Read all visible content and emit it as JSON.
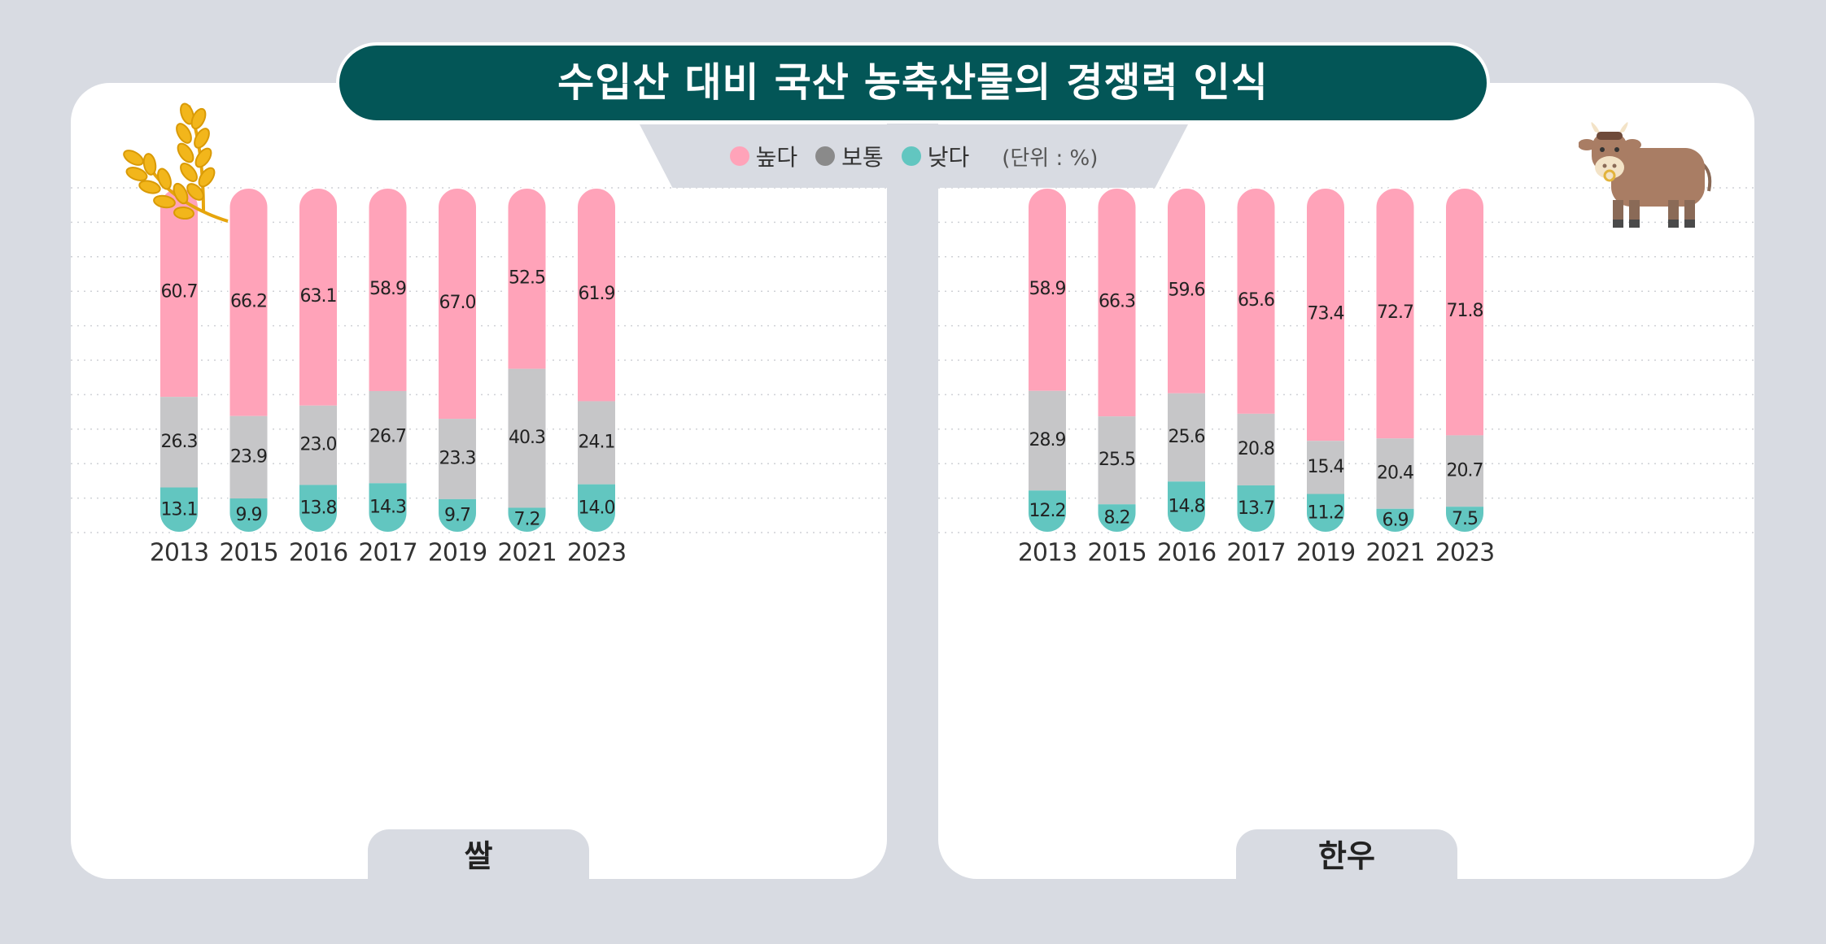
{
  "title": "수입산 대비 국산 농축산물의 경쟁력 인식",
  "legend": {
    "items": [
      {
        "label": "높다",
        "color": "#ffa3b9"
      },
      {
        "label": "보통",
        "color": "#8a8a8a"
      },
      {
        "label": "낮다",
        "color": "#62c6c0"
      }
    ],
    "unit": "(단위 : %)"
  },
  "colors": {
    "high": "#ffa3b9",
    "mid": "#c6c6c8",
    "low": "#62c6c0",
    "title_bg": "#035657"
  },
  "icons": {
    "left": "wheat-icon",
    "right": "cow-icon"
  },
  "chart_data": [
    {
      "type": "bar",
      "stacked": true,
      "title": "쌀",
      "categories": [
        "2013",
        "2015",
        "2016",
        "2017",
        "2019",
        "2021",
        "2023"
      ],
      "series": [
        {
          "name": "낮다",
          "values": [
            13.1,
            9.9,
            13.8,
            14.3,
            9.7,
            7.2,
            14.0
          ]
        },
        {
          "name": "보통",
          "values": [
            26.3,
            23.9,
            23.0,
            26.7,
            23.3,
            40.3,
            24.1
          ]
        },
        {
          "name": "높다",
          "values": [
            60.7,
            66.2,
            63.1,
            58.9,
            67.0,
            52.5,
            61.9
          ]
        }
      ],
      "value_labels": {
        "low": [
          "13.1",
          "9.9",
          "13.8",
          "14.3",
          "9.7",
          "7.2",
          "14.0"
        ],
        "mid": [
          "26.3",
          "23.9",
          "23.0",
          "26.7",
          "23.3",
          "40.3",
          "24.1"
        ],
        "high": [
          "60.7",
          "66.2",
          "63.1",
          "58.9",
          "67.0",
          "52.5",
          "61.9"
        ]
      },
      "ylim": [
        0,
        100
      ],
      "grid": true
    },
    {
      "type": "bar",
      "stacked": true,
      "title": "한우",
      "categories": [
        "2013",
        "2015",
        "2016",
        "2017",
        "2019",
        "2021",
        "2023"
      ],
      "series": [
        {
          "name": "낮다",
          "values": [
            12.2,
            8.2,
            14.8,
            13.7,
            11.2,
            6.9,
            7.5
          ]
        },
        {
          "name": "보통",
          "values": [
            28.9,
            25.5,
            25.6,
            20.8,
            15.4,
            20.4,
            20.7
          ]
        },
        {
          "name": "높다",
          "values": [
            58.9,
            66.3,
            59.6,
            65.6,
            73.4,
            72.7,
            71.8
          ]
        }
      ],
      "value_labels": {
        "low": [
          "12.2",
          "8.2",
          "14.8",
          "13.7",
          "11.2",
          "6.9",
          "7.5"
        ],
        "mid": [
          "28.9",
          "25.5",
          "25.6",
          "20.8",
          "15.4",
          "20.4",
          "20.7"
        ],
        "high": [
          "58.9",
          "66.3",
          "59.6",
          "65.6",
          "73.4",
          "72.7",
          "71.8"
        ]
      },
      "ylim": [
        0,
        100
      ],
      "grid": true
    }
  ]
}
